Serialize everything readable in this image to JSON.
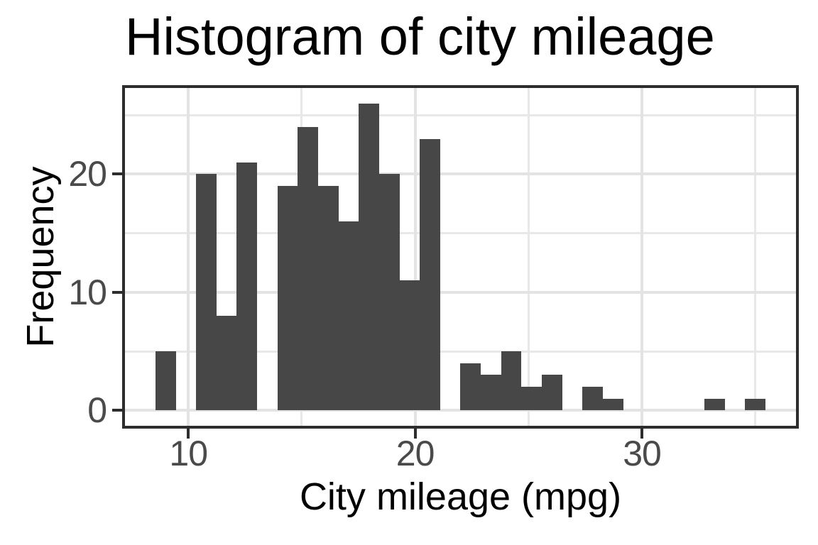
{
  "chart_data": {
    "type": "bar",
    "subtype": "histogram",
    "title": "Histogram of city mileage",
    "xlabel": "City mileage (mpg)",
    "ylabel": "Frequency",
    "legend": "none",
    "grid": true,
    "bin_width": 0.8966,
    "bin_centers": [
      9.0,
      9.897,
      10.793,
      11.69,
      12.586,
      13.483,
      14.379,
      15.276,
      16.172,
      17.069,
      17.966,
      18.862,
      19.759,
      20.655,
      21.552,
      22.448,
      23.345,
      24.241,
      25.138,
      26.034,
      26.931,
      27.828,
      28.724,
      29.621,
      30.517,
      31.414,
      32.31,
      33.207,
      34.103,
      35.0
    ],
    "counts": [
      5,
      0,
      20,
      8,
      21,
      0,
      19,
      24,
      19,
      16,
      26,
      20,
      11,
      23,
      0,
      4,
      3,
      5,
      2,
      3,
      0,
      2,
      1,
      0,
      0,
      0,
      0,
      1,
      0,
      1
    ],
    "x_axis": {
      "range": [
        7.207,
        36.793
      ],
      "major_ticks": [
        10,
        20,
        30
      ],
      "tick_labels": [
        "10",
        "20",
        "30"
      ],
      "minor_ticks": [
        15,
        25,
        35
      ]
    },
    "y_axis": {
      "range": [
        -1.3,
        27.3
      ],
      "major_ticks": [
        0,
        10,
        20
      ],
      "tick_labels": [
        "0",
        "10",
        "20"
      ],
      "minor_ticks": [
        5,
        15,
        25
      ]
    },
    "colors": {
      "background": "#ffffff",
      "bar_fill": "#474747",
      "panel_border": "#2d2d2d",
      "grid_major": "#e3e3e3",
      "grid_minor": "#e8e8e8",
      "tick_mark": "#2d2d2d",
      "tick_label": "#4a4a4a",
      "title_text": "#000000",
      "axis_title_text": "#000000"
    }
  }
}
